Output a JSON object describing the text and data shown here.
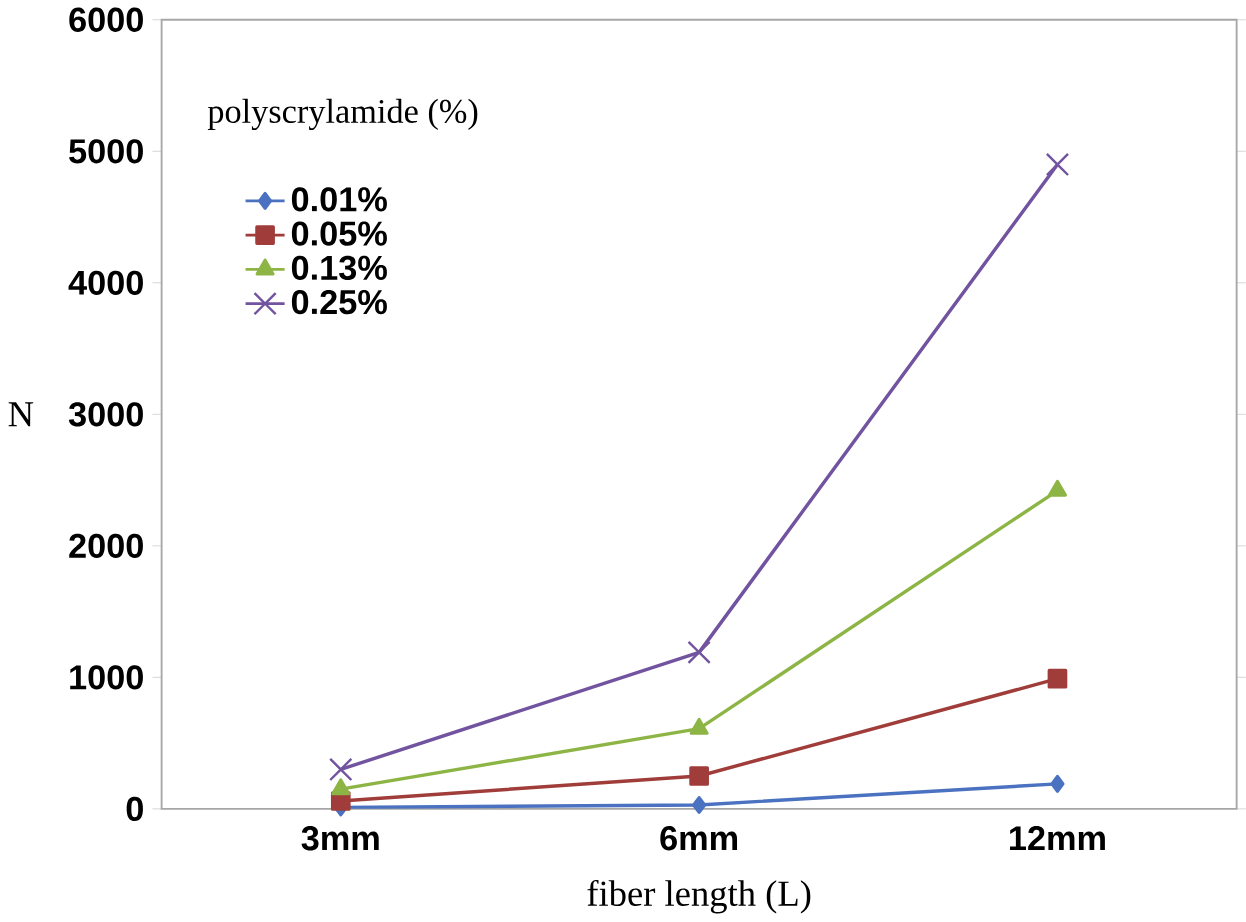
{
  "chart_data": {
    "type": "line",
    "xlabel": "fiber length (L)",
    "ylabel": "N",
    "legend_title": "polyscrylamide (%)",
    "categories": [
      "3mm",
      "6mm",
      "12mm"
    ],
    "series": [
      {
        "name": "0.01%",
        "color": "#4a72c0",
        "marker": "diamond",
        "values": [
          10,
          30,
          190
        ]
      },
      {
        "name": "0.05%",
        "color": "#a03d3a",
        "marker": "square",
        "values": [
          60,
          250,
          990
        ]
      },
      {
        "name": "0.13%",
        "color": "#8db545",
        "marker": "triangle",
        "values": [
          150,
          610,
          2420
        ]
      },
      {
        "name": "0.25%",
        "color": "#7253a0",
        "marker": "cross",
        "values": [
          300,
          1190,
          4900
        ]
      }
    ],
    "ylim": [
      0,
      6000
    ],
    "yticks": [
      0,
      1000,
      2000,
      3000,
      4000,
      5000,
      6000
    ],
    "grid": false,
    "legend": "top left"
  }
}
